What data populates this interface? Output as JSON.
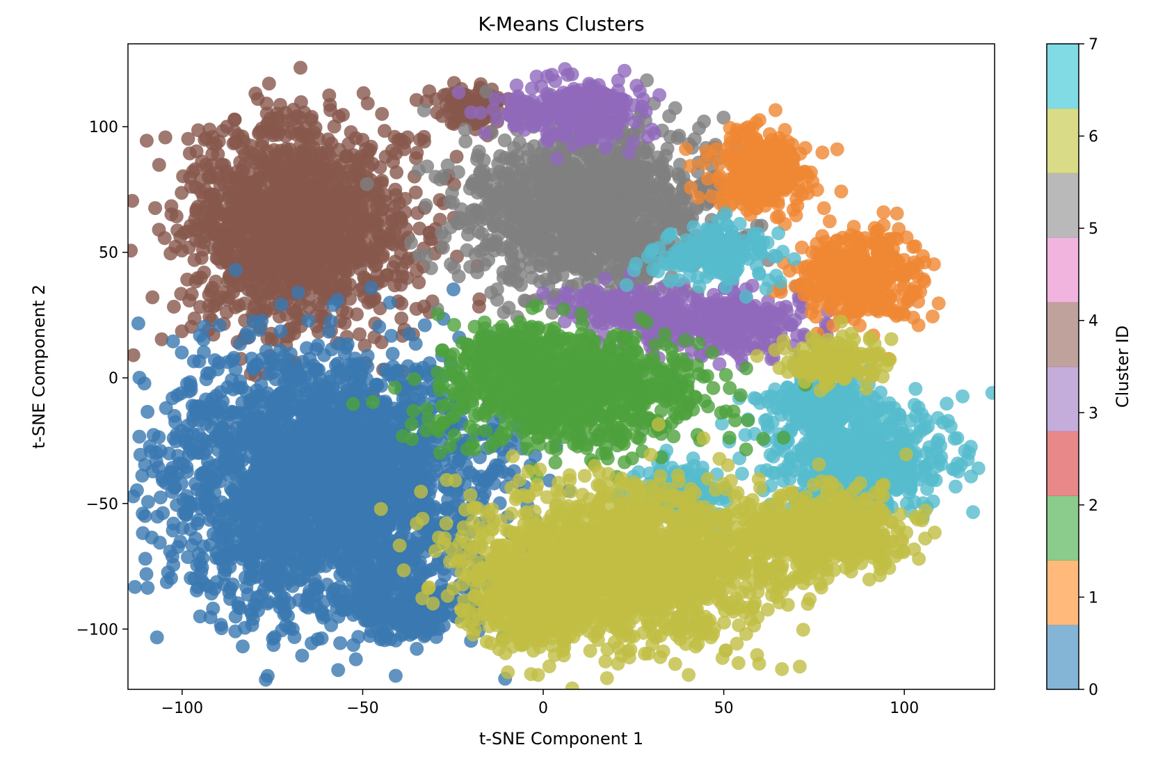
{
  "chart_data": {
    "type": "scatter",
    "title": "K-Means Clusters",
    "xlabel": "t-SNE Component 1",
    "ylabel": "t-SNE Component 2",
    "xlim": [
      -115,
      125
    ],
    "ylim": [
      -124,
      133
    ],
    "xticks": [
      -100,
      -50,
      0,
      50,
      100
    ],
    "yticks": [
      -100,
      -50,
      0,
      50,
      100
    ],
    "xtick_labels": [
      "−100",
      "−50",
      "0",
      "50",
      "100"
    ],
    "ytick_labels": [
      "−100",
      "−50",
      "0",
      "50",
      "100"
    ],
    "grid": false,
    "marker_alpha": 0.8,
    "colorbar": {
      "label": "Cluster ID",
      "vmin": 0,
      "vmax": 7,
      "ticks": [
        0,
        1,
        2,
        3,
        4,
        5,
        6,
        7
      ],
      "tick_labels": [
        "0",
        "1",
        "2",
        "3",
        "4",
        "5",
        "6",
        "7"
      ],
      "colormap": "tab10",
      "colors": [
        "#1f77b4",
        "#ff7f0e",
        "#2ca02c",
        "#d62728",
        "#9467bd",
        "#8c564b",
        "#e377c2",
        "#7f7f7f",
        "#bcbd22",
        "#17becf"
      ]
    },
    "point_colors": {
      "0": "#3a78b0",
      "1": "#ef8733",
      "2": "#4da13c",
      "4": "#9069bb",
      "5": "#87584c",
      "7": "#808080",
      "8": "#c0be44",
      "9": "#55bccd"
    },
    "clusters": [
      {
        "id": 5,
        "color_index": 5,
        "regions": [
          [
            -68,
            60,
            31,
            40
          ],
          [
            -20,
            108,
            10,
            7
          ]
        ]
      },
      {
        "id": 7,
        "color_index": 7,
        "regions": [
          [
            12,
            68,
            34,
            32
          ]
        ]
      },
      {
        "id": 4,
        "color_index": 4,
        "regions": [
          [
            8,
            106,
            18,
            12
          ],
          [
            50,
            22,
            24,
            12
          ],
          [
            22,
            28,
            16,
            8
          ]
        ]
      },
      {
        "id": 1,
        "color_index": 1,
        "regions": [
          [
            60,
            83,
            14,
            17
          ],
          [
            88,
            40,
            17,
            18
          ]
        ]
      },
      {
        "id": 9,
        "color_index": 9,
        "regions": [
          [
            48,
            50,
            17,
            10
          ],
          [
            88,
            -32,
            24,
            20
          ],
          [
            78,
            -10,
            16,
            10
          ],
          [
            38,
            -45,
            12,
            10
          ]
        ]
      },
      {
        "id": 0,
        "color_index": 0,
        "regions": [
          [
            -60,
            -42,
            43,
            50
          ],
          [
            -40,
            -90,
            18,
            12
          ]
        ]
      },
      {
        "id": 2,
        "color_index": 2,
        "regions": [
          [
            8,
            -5,
            36,
            22
          ],
          [
            -10,
            10,
            12,
            10
          ]
        ]
      },
      {
        "id": 8,
        "color_index": 8,
        "regions": [
          [
            22,
            -75,
            42,
            30
          ],
          [
            -2,
            -90,
            16,
            18
          ],
          [
            78,
            -62,
            24,
            16
          ],
          [
            82,
            7,
            14,
            9
          ]
        ]
      }
    ]
  }
}
